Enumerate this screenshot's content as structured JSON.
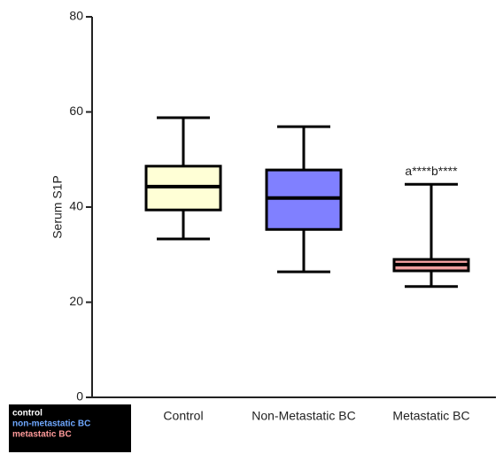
{
  "chart_data": {
    "type": "box",
    "y_label": "Serum S1P",
    "categories": [
      "Control",
      "Non-Metastatic BC",
      "Metastatic BC"
    ],
    "series": [
      {
        "name": "control",
        "color": "#ffffd6",
        "legend_color": "#ffffff",
        "whisker_low": 33.3,
        "q1": 39.4,
        "median": 44.3,
        "q3": 48.6,
        "whisker_high": 58.8
      },
      {
        "name": "non-metastatic BC",
        "color": "#8080ff",
        "legend_color": "#6fa8ff",
        "whisker_low": 26.4,
        "q1": 35.3,
        "median": 41.9,
        "q3": 47.8,
        "whisker_high": 56.9
      },
      {
        "name": "metastatic BC",
        "color": "#f0a0a0",
        "legend_color": "#ff9a9a",
        "whisker_low": 23.3,
        "q1": 26.6,
        "median": 27.9,
        "q3": 29.0,
        "whisker_high": 44.8
      }
    ],
    "annotations": [
      {
        "text": "a****b****",
        "category": 2
      }
    ],
    "ylim": [
      0,
      80
    ],
    "yticks": [
      0,
      20,
      40,
      60,
      80
    ]
  }
}
